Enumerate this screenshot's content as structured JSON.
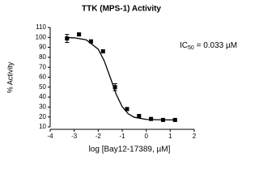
{
  "chart_data": {
    "type": "dose-response",
    "title": "TTK (MPS-1) Activity",
    "x_label": "log [Bay12-17389, µM]",
    "y_label": "% Activity",
    "annotation": {
      "prefix": "IC",
      "subscript": "50",
      "suffix": " = 0.033 µM"
    },
    "x": [
      -3.3,
      -2.8,
      -2.3,
      -1.8,
      -1.3,
      -0.8,
      -0.3,
      0.2,
      0.7,
      1.2
    ],
    "values": [
      99,
      103,
      96,
      86,
      50,
      28,
      21,
      18,
      17,
      17
    ],
    "errors": [
      4,
      1.5,
      1.5,
      1.5,
      3.5,
      1.5,
      1,
      1,
      1,
      1
    ],
    "fit_curve": {
      "x": [
        -3.3,
        -3.0,
        -2.5,
        -2.0,
        -1.75,
        -1.5,
        -1.25,
        -1.0,
        -0.75,
        -0.5,
        0,
        0.5,
        1.2
      ],
      "y": [
        99.8,
        99.6,
        97.6,
        88.2,
        76.5,
        59.9,
        42.8,
        30.3,
        23.2,
        19.7,
        17.5,
        17.2,
        17.0
      ]
    },
    "color": "#000000",
    "xlim": [
      -4,
      2
    ],
    "xticks": [
      -4,
      -3,
      -2,
      -1,
      0,
      1,
      2
    ],
    "ylim": [
      10,
      110
    ],
    "yticks": [
      10,
      20,
      30,
      40,
      50,
      60,
      70,
      80,
      90,
      100,
      110
    ]
  }
}
